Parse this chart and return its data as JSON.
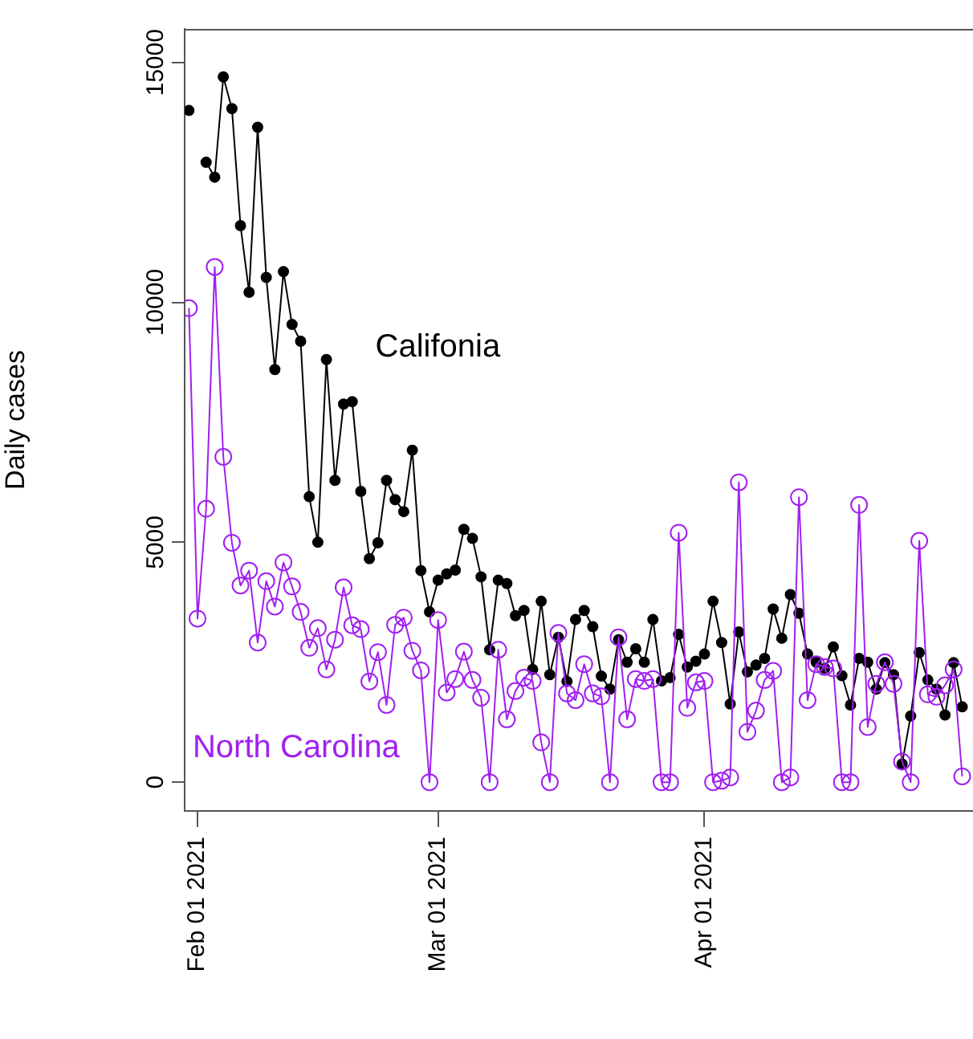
{
  "chart_data": {
    "type": "line",
    "ylabel": "Daily cases",
    "x": [
      "2021-01-31",
      "2021-02-01",
      "2021-02-02",
      "2021-02-03",
      "2021-02-04",
      "2021-02-05",
      "2021-02-06",
      "2021-02-07",
      "2021-02-08",
      "2021-02-09",
      "2021-02-10",
      "2021-02-11",
      "2021-02-12",
      "2021-02-13",
      "2021-02-14",
      "2021-02-15",
      "2021-02-16",
      "2021-02-17",
      "2021-02-18",
      "2021-02-19",
      "2021-02-20",
      "2021-02-21",
      "2021-02-22",
      "2021-02-23",
      "2021-02-24",
      "2021-02-25",
      "2021-02-26",
      "2021-02-27",
      "2021-02-28",
      "2021-03-01",
      "2021-03-02",
      "2021-03-03",
      "2021-03-04",
      "2021-03-05",
      "2021-03-06",
      "2021-03-07",
      "2021-03-08",
      "2021-03-09",
      "2021-03-10",
      "2021-03-11",
      "2021-03-12",
      "2021-03-13",
      "2021-03-14",
      "2021-03-15",
      "2021-03-16",
      "2021-03-17",
      "2021-03-18",
      "2021-03-19",
      "2021-03-20",
      "2021-03-21",
      "2021-03-22",
      "2021-03-23",
      "2021-03-24",
      "2021-03-25",
      "2021-03-26",
      "2021-03-27",
      "2021-03-28",
      "2021-03-29",
      "2021-03-30",
      "2021-03-31",
      "2021-04-01",
      "2021-04-02",
      "2021-04-03",
      "2021-04-04",
      "2021-04-05",
      "2021-04-06",
      "2021-04-07",
      "2021-04-08",
      "2021-04-09",
      "2021-04-10",
      "2021-04-11",
      "2021-04-12",
      "2021-04-13",
      "2021-04-14",
      "2021-04-15",
      "2021-04-16",
      "2021-04-17",
      "2021-04-18",
      "2021-04-19",
      "2021-04-20",
      "2021-04-21",
      "2021-04-22",
      "2021-04-23",
      "2021-04-24",
      "2021-04-25",
      "2021-04-26",
      "2021-04-27",
      "2021-04-28",
      "2021-04-29",
      "2021-04-30",
      "2021-05-01"
    ],
    "series": [
      {
        "name": "Califonia",
        "color": "#000000",
        "values": [
          14000,
          null,
          12920,
          12610,
          14700,
          14040,
          11600,
          10210,
          13650,
          10520,
          8600,
          10640,
          9540,
          9190,
          5950,
          5000,
          8810,
          6290,
          7880,
          7930,
          6060,
          4660,
          4990,
          6290,
          5890,
          5640,
          6920,
          4410,
          3550,
          4210,
          4340,
          4420,
          5270,
          5080,
          4280,
          2760,
          4210,
          4140,
          3470,
          3580,
          2350,
          3770,
          2240,
          3020,
          2100,
          3390,
          3580,
          3240,
          2210,
          1940,
          2970,
          2500,
          2780,
          2500,
          3390,
          2110,
          2180,
          3080,
          2400,
          2520,
          2670,
          3770,
          2910,
          1630,
          3130,
          2300,
          2440,
          2580,
          3610,
          3000,
          3910,
          3520,
          2670,
          2500,
          2370,
          2820,
          2220,
          1610,
          2580,
          2500,
          1940,
          2490,
          2240,
          380,
          1380,
          2700,
          2130,
          1940,
          1400,
          2490,
          1570
        ]
      },
      {
        "name": "North Carolina",
        "color": "#a020f0",
        "values": [
          9880,
          3410,
          5700,
          10740,
          6780,
          4990,
          4100,
          4410,
          2910,
          4190,
          3660,
          4580,
          4080,
          3550,
          2800,
          3210,
          2350,
          2970,
          4060,
          3270,
          3190,
          2100,
          2710,
          1610,
          3280,
          3430,
          2740,
          2330,
          0,
          3380,
          1870,
          2150,
          2720,
          2130,
          1760,
          0,
          2760,
          1310,
          1900,
          2180,
          2110,
          830,
          0,
          3110,
          1850,
          1710,
          2460,
          1850,
          1790,
          0,
          3020,
          1310,
          2150,
          2110,
          2150,
          0,
          0,
          5200,
          1550,
          2080,
          2110,
          0,
          30,
          100,
          6250,
          1050,
          1490,
          2130,
          2320,
          0,
          100,
          5940,
          1710,
          2460,
          2400,
          2370,
          0,
          0,
          5780,
          1150,
          2050,
          2500,
          2050,
          430,
          0,
          5030,
          1830,
          1780,
          2020,
          2350,
          120
        ]
      }
    ],
    "xlim": [
      "2021-01-30T12:00",
      "2021-05-03T18:00"
    ],
    "xticks": [
      {
        "value": "2021-02-01",
        "label": "Feb 01 2021"
      },
      {
        "value": "2021-03-01",
        "label": "Mar 01 2021"
      },
      {
        "value": "2021-04-01",
        "label": "Apr 01 2021"
      }
    ],
    "ylim": [
      -600,
      15700
    ],
    "yticks": [
      0,
      5000,
      10000,
      15000
    ],
    "grid": false,
    "legend": false,
    "marker": "circle",
    "line_style": "solid"
  }
}
